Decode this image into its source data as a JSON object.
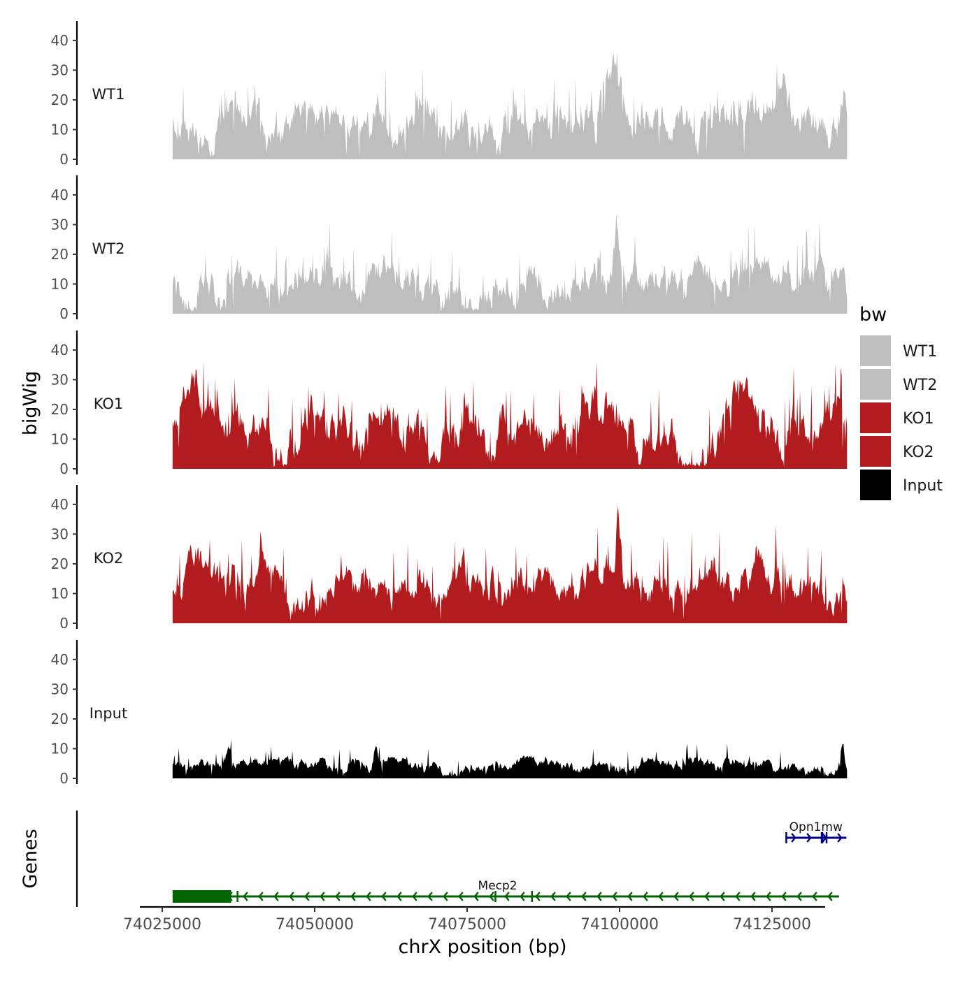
{
  "chart_data": {
    "type": "area",
    "title": "",
    "ylabel": "bigWig",
    "xlabel": "chrX position (bp)",
    "genes_label": "Genes",
    "xlim": [
      74025000,
      74137500
    ],
    "data_xrange": [
      74026700,
      74137300
    ],
    "x_ticks": [
      74025000,
      74050000,
      74075000,
      74100000,
      74125000
    ],
    "x_tick_labels": [
      "74025000",
      "74050000",
      "74075000",
      "74100000",
      "74125000"
    ],
    "ylim": [
      0,
      45
    ],
    "y_ticks": [
      0,
      10,
      20,
      30,
      40
    ],
    "y_tick_labels": [
      "0",
      "10",
      "20",
      "30",
      "40"
    ],
    "series": [
      {
        "name": "WT1",
        "color": "#bebebe",
        "seed": 11,
        "baseline": 13,
        "amplitude": 10,
        "spike_max": 16,
        "peaks": [
          [
            74099000,
            14,
            2000
          ],
          [
            74127000,
            10,
            1500
          ],
          [
            74136800,
            18,
            600
          ]
        ],
        "dips": [
          [
            74096200,
            10,
            300
          ],
          [
            74113000,
            9,
            350
          ]
        ]
      },
      {
        "name": "WT2",
        "color": "#bebebe",
        "seed": 23,
        "baseline": 11,
        "amplitude": 9,
        "spike_max": 14,
        "peaks": [
          [
            74099500,
            18,
            700
          ],
          [
            74124000,
            6,
            3000
          ]
        ],
        "dips": [
          [
            74071000,
            10,
            300
          ],
          [
            74030000,
            7,
            500
          ]
        ]
      },
      {
        "name": "KO1",
        "color": "#b31c1f",
        "seed": 37,
        "baseline": 14,
        "amplitude": 11,
        "spike_max": 16,
        "peaks": [
          [
            74030000,
            10,
            3000
          ],
          [
            74098000,
            14,
            2500
          ],
          [
            74121000,
            14,
            2500
          ],
          [
            74051500,
            6,
            2000
          ]
        ],
        "dips": [
          [
            74111500,
            10,
            2800
          ],
          [
            74070000,
            6,
            1500
          ]
        ]
      },
      {
        "name": "KO2",
        "color": "#b31c1f",
        "seed": 53,
        "baseline": 13,
        "amplitude": 10,
        "spike_max": 16,
        "peaks": [
          [
            74030000,
            8,
            2500
          ],
          [
            74099800,
            20,
            600
          ],
          [
            74122000,
            9,
            3000
          ],
          [
            74098000,
            8,
            2000
          ]
        ],
        "dips": [
          [
            74071000,
            10,
            1200
          ]
        ]
      },
      {
        "name": "Input",
        "color": "#000000",
        "seed": 71,
        "baseline": 4.5,
        "amplitude": 3,
        "spike_max": 7,
        "peaks": [
          [
            74036000,
            6,
            500
          ],
          [
            74060000,
            6,
            400
          ],
          [
            74136500,
            7,
            400
          ]
        ],
        "dips": [
          [
            74059000,
            3,
            300
          ]
        ]
      }
    ],
    "legend": {
      "title": "bw",
      "position": "right",
      "entries": [
        {
          "label": "WT1",
          "color": "#bebebe"
        },
        {
          "label": "WT2",
          "color": "#bebebe"
        },
        {
          "label": "KO1",
          "color": "#b31c1f"
        },
        {
          "label": "KO2",
          "color": "#b31c1f"
        },
        {
          "label": "Input",
          "color": "#000000"
        }
      ]
    },
    "genes": [
      {
        "name": "Mecp2",
        "color": "#006400",
        "strand": "-",
        "row": 0,
        "start": 74026700,
        "end": 74136000,
        "exons": [
          [
            74026700,
            74036300
          ],
          [
            74037200,
            74037400
          ],
          [
            74079500,
            74079700
          ],
          [
            74085500,
            74085700
          ]
        ]
      },
      {
        "name": "Opn1mw",
        "color": "#00008b",
        "strand": "+",
        "row": 1,
        "start": 74127200,
        "end": 74137200,
        "exons": [
          [
            74127200,
            74127400
          ],
          [
            74133000,
            74133400
          ],
          [
            74133800,
            74134000
          ]
        ]
      }
    ]
  }
}
